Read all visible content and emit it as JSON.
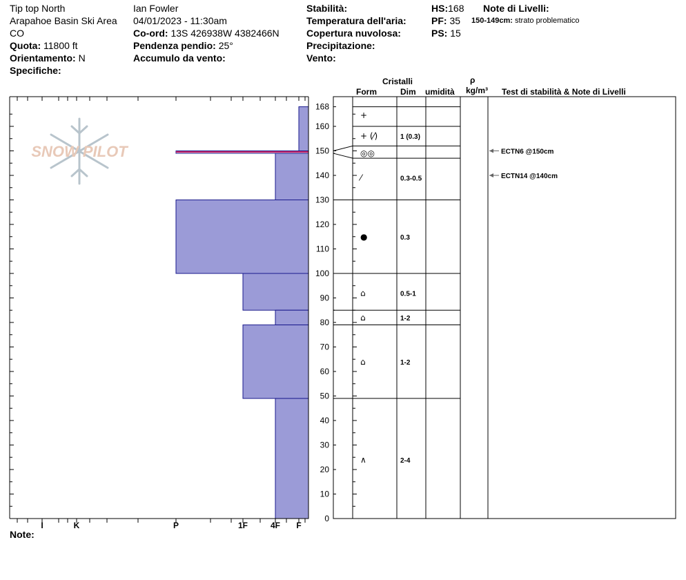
{
  "header": {
    "location": "Tip top North",
    "area": "Arapahoe Basin Ski Area",
    "state": "CO",
    "elevation_label": "Quota:",
    "elevation_value": "11800 ft",
    "aspect_label": "Orientamento:",
    "aspect_value": "N",
    "specifics_label": "Specifiche:",
    "observer": "Ian Fowler",
    "datetime": "04/01/2023 - 11:30am",
    "coord_label": "Co-ord:",
    "coord_value": "13S 426938W 4382466N",
    "slope_label": "Pendenza pendio:",
    "slope_value": "25°",
    "wind_loading_label": "Accumulo da vento:",
    "stability_label": "Stabilità:",
    "air_temp_label": "Temperatura dell'aria:",
    "cloud_cover_label": "Copertura nuvolosa:",
    "precip_label": "Precipitazione:",
    "wind_label": "Vento:",
    "hs_label": "HS:",
    "hs_value": "168",
    "pf_label": "PF:",
    "pf_value": "35",
    "ps_label": "PS:",
    "ps_value": "15",
    "layer_notes_label": "Note di Livelli:",
    "layer_note_range": "150-149cm:",
    "layer_note_text": "strato problematico"
  },
  "table_headers": {
    "crystals": "Cristalli",
    "rho": "ρ",
    "form": "Form",
    "size": "Dim",
    "moisture": "umidità",
    "density_unit": "kg/m³",
    "tests": "Test di stabilità & Note di Livelli"
  },
  "footer": {
    "notes_label": "Note:"
  },
  "watermark": "SNOW PILOT",
  "colors": {
    "hardness_fill": "#9b9bd7",
    "hardness_stroke": "#1a1a8c",
    "weak_layer": "#cc2266",
    "watermark": "#e8c9b8",
    "snowflake": "#b8c4cc"
  },
  "chart_data": {
    "type": "hardness-profile",
    "y_axis": {
      "min": 0,
      "max": 168,
      "ticks": [
        0,
        10,
        20,
        30,
        40,
        50,
        60,
        70,
        80,
        90,
        100,
        110,
        120,
        130,
        140,
        150,
        160,
        168
      ]
    },
    "hardness_scale": [
      {
        "label": "I",
        "value": 1
      },
      {
        "label": "K",
        "value": 2
      },
      {
        "label": "P",
        "value": 3
      },
      {
        "label": "1F",
        "value": 4
      },
      {
        "label": "4F",
        "value": 5
      },
      {
        "label": "F",
        "value": 6
      }
    ],
    "hardness_layers": [
      {
        "top": 168,
        "bottom": 150,
        "hardness": 6
      },
      {
        "top": 150,
        "bottom": 149,
        "hardness": 3
      },
      {
        "top": 149,
        "bottom": 130,
        "hardness": 5
      },
      {
        "top": 130,
        "bottom": 100,
        "hardness": 3
      },
      {
        "top": 100,
        "bottom": 85,
        "hardness": 4
      },
      {
        "top": 85,
        "bottom": 79,
        "hardness": 5
      },
      {
        "top": 79,
        "bottom": 49,
        "hardness": 4
      },
      {
        "top": 49,
        "bottom": 0,
        "hardness": 5
      }
    ],
    "grain_boundaries": [
      168,
      160,
      152,
      147,
      130,
      100,
      85,
      79,
      49,
      0
    ],
    "grain_layers": [
      {
        "top": 168,
        "bottom": 160,
        "form": "+",
        "size": ""
      },
      {
        "top": 160,
        "bottom": 152,
        "form": "+ (⁄)",
        "size": "1 (0.3)"
      },
      {
        "top": 152,
        "bottom": 147,
        "form": "◎◎",
        "size": ""
      },
      {
        "top": 147,
        "bottom": 130,
        "form": "⁄",
        "size": "0.3-0.5"
      },
      {
        "top": 130,
        "bottom": 100,
        "form": "●",
        "size": "0.3"
      },
      {
        "top": 100,
        "bottom": 85,
        "form": "⌂",
        "size": "0.5-1"
      },
      {
        "top": 85,
        "bottom": 79,
        "form": "⌂",
        "size": "1-2"
      },
      {
        "top": 79,
        "bottom": 49,
        "form": "⌂",
        "size": "1-2"
      },
      {
        "top": 49,
        "bottom": 0,
        "form": "∧",
        "size": "2-4"
      }
    ],
    "stability_tests": [
      {
        "depth": 150,
        "label": "ECTN6 @150cm"
      },
      {
        "depth": 140,
        "label": "ECTN14 @140cm"
      }
    ]
  }
}
